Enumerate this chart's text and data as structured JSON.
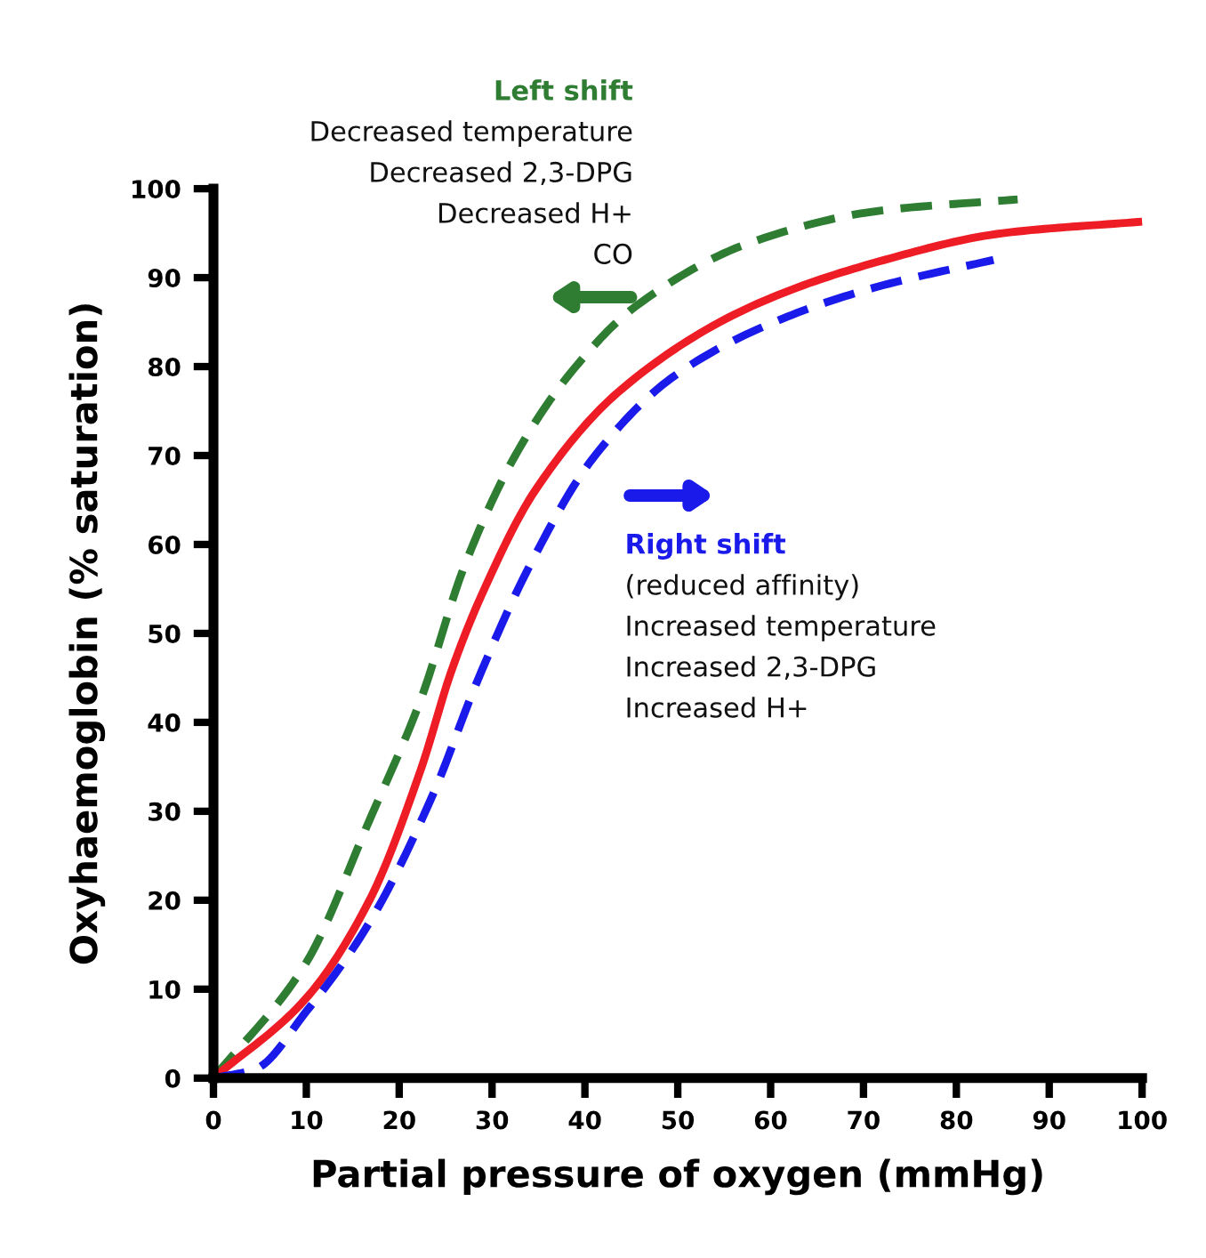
{
  "chart_data": {
    "type": "line",
    "xlabel": "Partial pressure of oxygen (mmHg)",
    "ylabel": "Oxyhaemoglobin (% saturation)",
    "xlim": [
      0,
      100
    ],
    "ylim": [
      0,
      100
    ],
    "xticks": [
      0,
      10,
      20,
      30,
      40,
      50,
      60,
      70,
      80,
      90,
      100
    ],
    "yticks": [
      0,
      10,
      20,
      30,
      40,
      50,
      60,
      70,
      80,
      90,
      100
    ],
    "grid": false,
    "marker": "none",
    "series": [
      {
        "color": "#2e7d32",
        "line_style": "dashed",
        "x": [
          0,
          10,
          16.8,
          22.3,
          27,
          32.5,
          38.7,
          45.5,
          58,
          71.6,
          86.6
        ],
        "values": [
          0,
          13,
          29,
          42.5,
          57.5,
          70,
          79.6,
          86.8,
          94,
          97.5,
          98.8
        ]
      },
      {
        "color": "#ee1c25",
        "line_style": "solid",
        "x": [
          0,
          10,
          16.8,
          22.3,
          25.7,
          29,
          34.6,
          44,
          58,
          71.6,
          85,
          100
        ],
        "values": [
          0,
          9,
          20,
          34.6,
          46,
          54.6,
          66,
          77.5,
          86.8,
          91.8,
          95,
          96.3
        ]
      },
      {
        "color": "#1a1aeb",
        "line_style": "dashed",
        "x": [
          0,
          4.5,
          10,
          16.8,
          23.6,
          28.4,
          34,
          40.8,
          49.7,
          61.3,
          71.6,
          84
        ],
        "values": [
          0,
          1,
          7.5,
          17.5,
          31.8,
          44.6,
          57.5,
          69.6,
          79,
          85.4,
          89,
          92
        ]
      }
    ],
    "annotations": [
      "Left shift",
      "Decreased temperature",
      "Decreased 2,3-DPG",
      "Decreased H+",
      "CO",
      "Right shift",
      "(reduced affinity)",
      "Increased temperature",
      "Increased 2,3-DPG",
      "Increased H+"
    ]
  }
}
